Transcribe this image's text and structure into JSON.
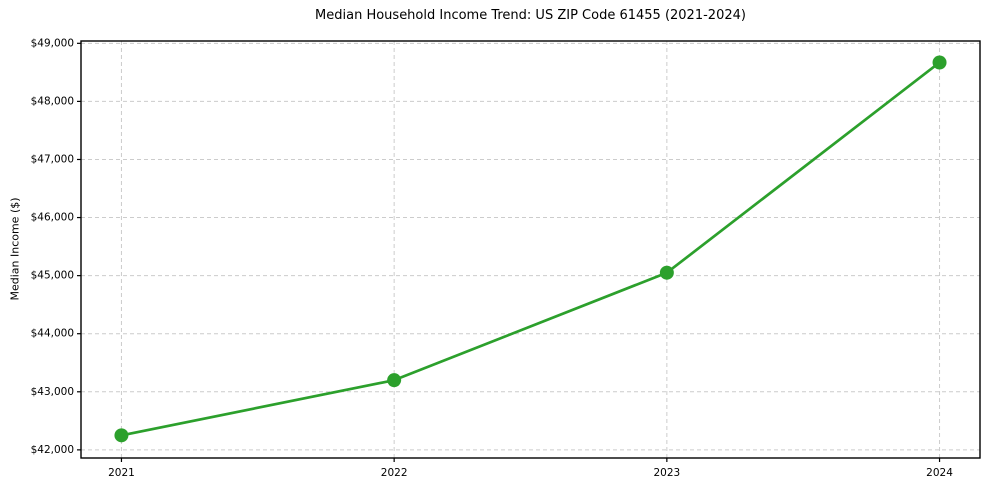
{
  "page": {
    "background": "#ffffff"
  },
  "chart_data": {
    "type": "line",
    "title": "Median Household Income Trend: US ZIP Code 61455 (2021-2024)",
    "xlabel": "",
    "ylabel": "Median Income ($)",
    "categories": [
      "2021",
      "2022",
      "2023",
      "2024"
    ],
    "values": [
      42250,
      43200,
      45050,
      48670
    ],
    "ylim": [
      41860,
      49040
    ],
    "yticks": [
      42000,
      43000,
      44000,
      45000,
      46000,
      47000,
      48000,
      49000
    ],
    "ytick_labels": [
      "$42,000",
      "$43,000",
      "$44,000",
      "$45,000",
      "$46,000",
      "$47,000",
      "$48,000",
      "$49,000"
    ],
    "line_color": "#2ca02c",
    "marker": "circle",
    "marker_radius": 7,
    "line_width": 2.7,
    "grid": true,
    "grid_style": "dashed",
    "grid_color": "#cccccc",
    "axis_color": "#000000",
    "legend": false
  }
}
